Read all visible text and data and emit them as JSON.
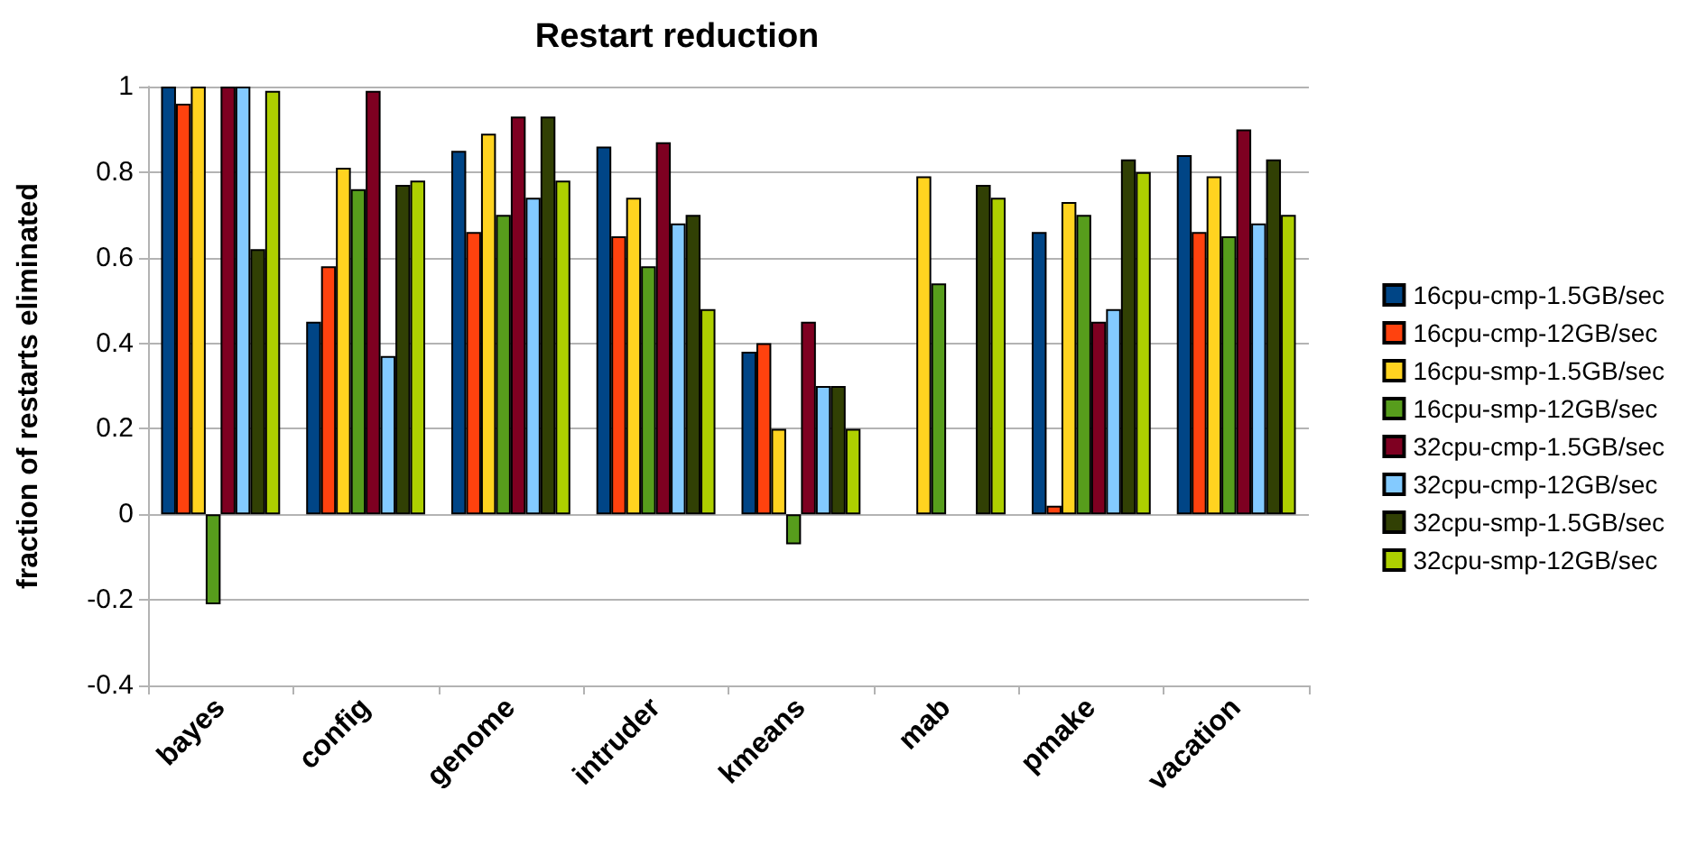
{
  "chart_data": {
    "type": "bar",
    "title": "Restart reduction",
    "ylabel": "fraction of restarts eliminated",
    "categories": [
      "bayes",
      "config",
      "genome",
      "intruder",
      "kmeans",
      "mab",
      "pmake",
      "vacation"
    ],
    "series": [
      {
        "name": "16cpu-cmp-1.5GB/sec",
        "color": "#004586",
        "values": [
          1,
          0.45,
          0.85,
          0.86,
          0.38,
          null,
          0.66,
          0.84
        ]
      },
      {
        "name": "16cpu-cmp-12GB/sec",
        "color": "#ff420e",
        "values": [
          0.96,
          0.58,
          0.66,
          0.65,
          0.4,
          null,
          0.02,
          0.66
        ]
      },
      {
        "name": "16cpu-smp-1.5GB/sec",
        "color": "#ffd320",
        "values": [
          1,
          0.81,
          0.89,
          0.74,
          0.2,
          0.79,
          0.73,
          0.79
        ]
      },
      {
        "name": "16cpu-smp-12GB/sec",
        "color": "#579d1c",
        "values": [
          -0.21,
          0.76,
          0.7,
          0.58,
          -0.07,
          0.54,
          0.7,
          0.65
        ]
      },
      {
        "name": "32cpu-cmp-1.5GB/sec",
        "color": "#7e0021",
        "values": [
          1,
          0.99,
          0.93,
          0.87,
          0.45,
          null,
          0.45,
          0.9
        ]
      },
      {
        "name": "32cpu-cmp-12GB/sec",
        "color": "#83caff",
        "values": [
          1,
          0.37,
          0.74,
          0.68,
          0.3,
          null,
          0.48,
          0.68
        ]
      },
      {
        "name": "32cpu-smp-1.5GB/sec",
        "color": "#314004",
        "values": [
          0.62,
          0.77,
          0.93,
          0.7,
          0.3,
          0.77,
          0.83,
          0.83
        ]
      },
      {
        "name": "32cpu-smp-12GB/sec",
        "color": "#aecf00",
        "values": [
          0.99,
          0.78,
          0.78,
          0.48,
          0.2,
          0.74,
          0.8,
          0.7
        ]
      }
    ],
    "ylim": [
      -0.4,
      1
    ],
    "yticks": [
      -0.4,
      -0.2,
      0,
      0.2,
      0.4,
      0.6,
      0.8,
      1
    ],
    "grid": "y",
    "legend": "right"
  }
}
